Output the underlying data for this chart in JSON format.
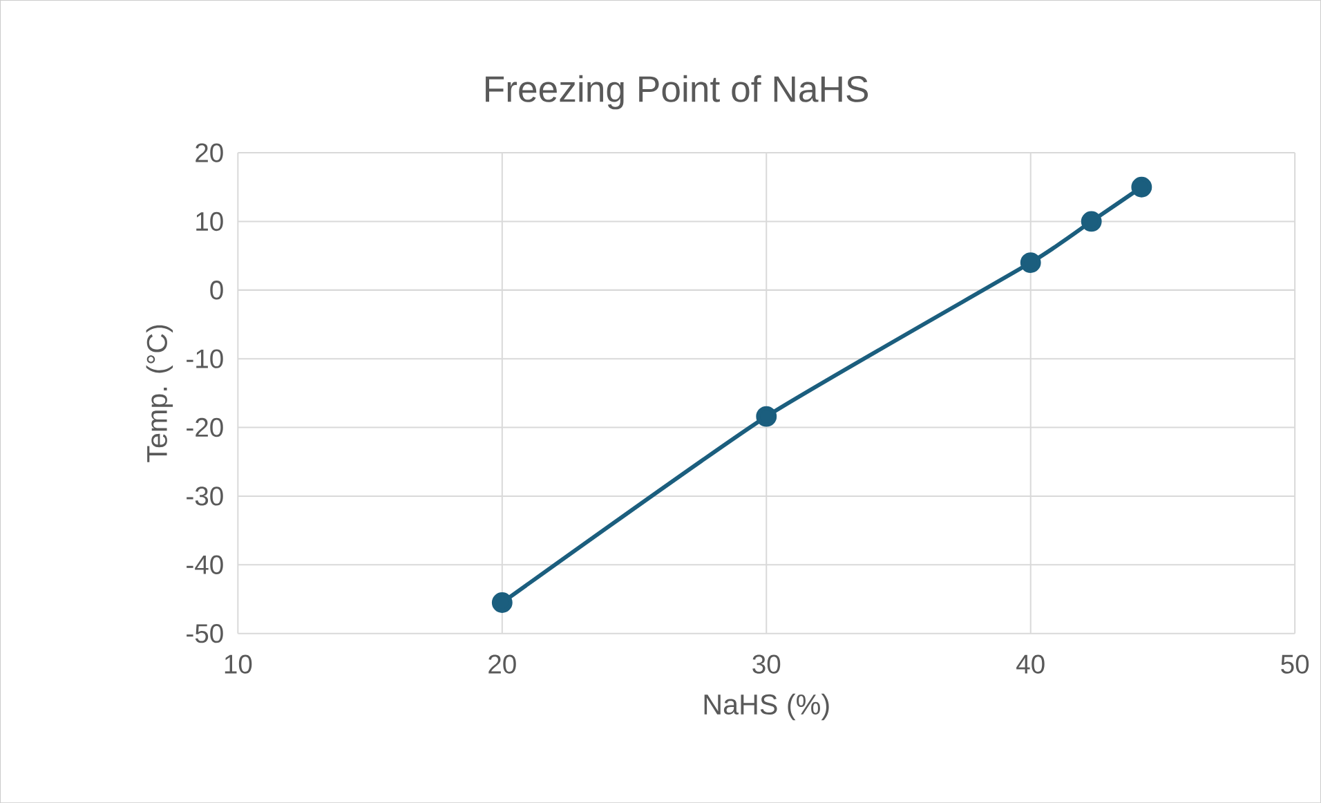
{
  "chart_data": {
    "type": "line",
    "title": "Freezing Point of NaHS",
    "xlabel": "NaHS (%)",
    "ylabel": "Temp. (°C)",
    "x": [
      20,
      30,
      40,
      42.3,
      44.2
    ],
    "series": [
      {
        "color": "#1b5e7e",
        "values": [
          -45.5,
          -18.4,
          4.0,
          10.0,
          15.0
        ]
      }
    ],
    "xlim": [
      10,
      50
    ],
    "xticks": [
      10,
      20,
      30,
      40,
      50
    ],
    "ylim": [
      -50,
      20
    ],
    "yticks": [
      -50,
      -40,
      -30,
      -20,
      -10,
      0,
      10,
      20
    ],
    "grid": true,
    "marker": "circle",
    "line_style": "solid",
    "legend": false
  }
}
